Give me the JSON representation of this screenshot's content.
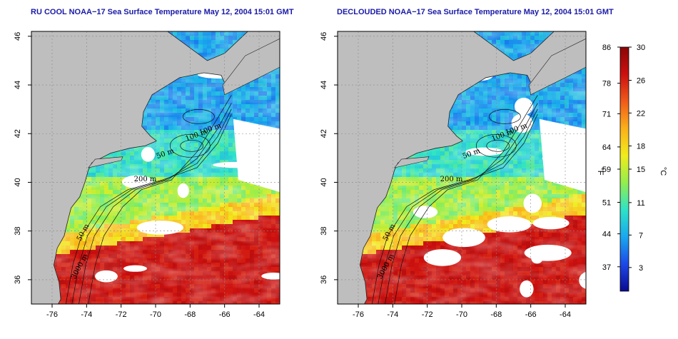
{
  "panels": [
    {
      "id": "ru-cool",
      "title": "RU COOL NOAA−17 Sea Surface Temperature May 12, 2004 15:01 GMT",
      "contours": [
        "100 m",
        "100 m",
        "50 m",
        "200 m",
        "50 m",
        "3000 m"
      ],
      "cloud_fraction": 0.18
    },
    {
      "id": "declouded",
      "title": "DECLOUDED NOAA−17 Sea Surface Temperature May 12, 2004 15:01 GMT",
      "contours": [
        "100 m",
        "100 m",
        "50 m",
        "200 m",
        "50 m",
        "3000 m"
      ],
      "cloud_fraction": 0.32
    }
  ],
  "map": {
    "lon_ticks": [
      "-76",
      "-74",
      "-72",
      "-70",
      "-68",
      "-66",
      "-64"
    ],
    "lat_ticks": [
      "46",
      "44",
      "42",
      "40",
      "38",
      "36"
    ],
    "lon_range": [
      -77.2,
      -62.8
    ],
    "lat_range": [
      35.0,
      46.2
    ],
    "land_color": "#bebebe",
    "cloud_color": "#ffffff",
    "grid": "dotted"
  },
  "colorbar": {
    "f_ticks": [
      "86",
      "78",
      "71",
      "64",
      "59",
      "51",
      "44",
      "37"
    ],
    "c_ticks": [
      "30",
      "26",
      "22",
      "18",
      "15",
      "11",
      "7",
      "3"
    ],
    "f_label": "°F",
    "c_label": "°C",
    "colors": [
      "#0a0a90",
      "#1d48e8",
      "#19a8ef",
      "#2ee3c7",
      "#93ee4e",
      "#f0ec1c",
      "#fbb01a",
      "#f05a1a",
      "#cc1010",
      "#8a0606"
    ]
  }
}
